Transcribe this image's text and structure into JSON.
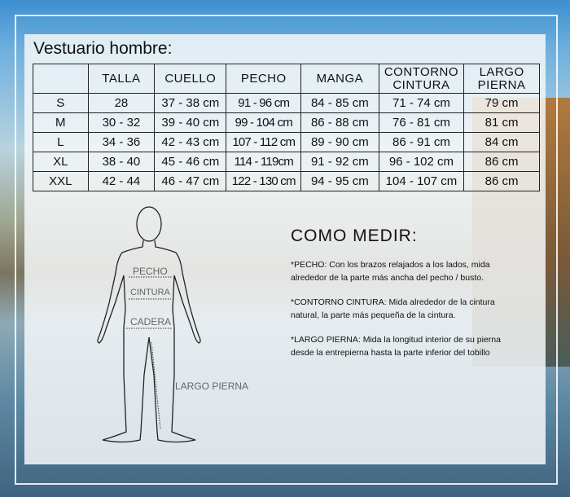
{
  "title": "Vestuario hombre:",
  "table": {
    "headers": [
      "",
      "TALLA",
      "CUELLO",
      "PECHO",
      "MANGA",
      "CONTORNO CINTURA",
      "LARGO PIERNA"
    ],
    "rows": [
      [
        "S",
        "28",
        "37 - 38 cm",
        "91 - 96 cm",
        "84 - 85 cm",
        "71 - 74 cm",
        "79 cm"
      ],
      [
        "M",
        "30 - 32",
        "39 - 40 cm",
        "99 - 104 cm",
        "86 - 88 cm",
        "76 - 81 cm",
        "81 cm"
      ],
      [
        "L",
        "34 - 36",
        "42 - 43 cm",
        "107 - 112 cm",
        "89 - 90 cm",
        "86 - 91 cm",
        "84 cm"
      ],
      [
        "XL",
        "38 - 40",
        "45 - 46 cm",
        "114 - 119cm",
        "91 - 92 cm",
        "96 - 102 cm",
        "86 cm"
      ],
      [
        "XXL",
        "42 - 44",
        "46 - 47 cm",
        "122 - 130 cm",
        "94 - 95 cm",
        "104 - 107 cm",
        "86 cm"
      ]
    ]
  },
  "figure": {
    "labels": {
      "pecho": "PECHO",
      "cintura": "CINTURA",
      "cadera": "CADERA",
      "largo": "LARGO PIERNA"
    }
  },
  "como_medir": {
    "heading": "COMO MEDIR:",
    "notes": [
      "*PECHO: Con los brazos relajados a los lados, mida alrededor de la parte más ancha del pecho / busto.",
      "*CONTORNO CINTURA: Mida alrededor de la cintura natural, la parte más pequeña de la cintura.",
      "*LARGO PIERNA: Mida la longitud interior de su pierna desde la entrepierna hasta la parte inferior del tobillo"
    ]
  }
}
